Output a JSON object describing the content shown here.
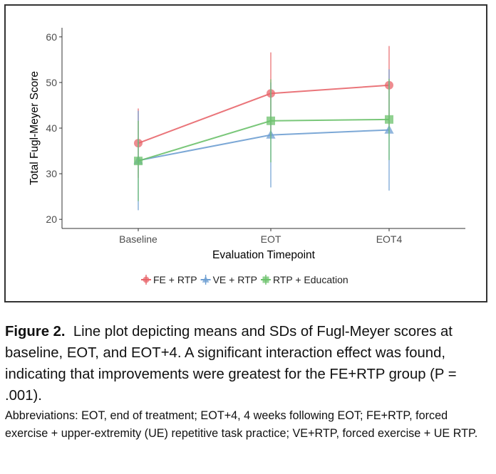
{
  "chart_data": {
    "type": "line",
    "xlabel": "Evaluation Timepoint",
    "ylabel": "Total Fugl-Meyer Score",
    "categories": [
      "Baseline",
      "EOT",
      "EOT4"
    ],
    "ylim": [
      18,
      62
    ],
    "yticks": [
      20,
      30,
      40,
      50,
      60
    ],
    "grid": false,
    "legend_position": "bottom",
    "series": [
      {
        "name": "FE + RTP",
        "color": "#e8666b",
        "marker": "circle",
        "values": [
          36.7,
          47.6,
          49.4
        ],
        "sd_low": [
          29.1,
          38.6,
          40.6
        ],
        "sd_high": [
          44.3,
          56.6,
          58.0
        ]
      },
      {
        "name": "VE + RTP",
        "color": "#6e9fd2",
        "marker": "triangle",
        "values": [
          32.9,
          38.5,
          39.6
        ],
        "sd_low": [
          22.0,
          27.0,
          26.3
        ],
        "sd_high": [
          43.8,
          50.0,
          52.9
        ]
      },
      {
        "name": "RTP + Education",
        "color": "#6cc16c",
        "marker": "square",
        "values": [
          32.8,
          41.6,
          41.9
        ],
        "sd_low": [
          24.0,
          32.5,
          33.0
        ],
        "sd_high": [
          41.6,
          50.7,
          50.8
        ]
      }
    ]
  },
  "caption": {
    "label": "Figure 2.",
    "text": "Line plot depicting means and SDs of Fugl-Meyer scores at baseline, EOT, and EOT+4. A significant interaction effect was found, indicating that improvements were greatest for the FE+RTP group (P = .001).",
    "abbreviations": "Abbreviations: EOT, end of treatment; EOT+4, 4 weeks following EOT; FE+RTP, forced exercise + upper-extremity (UE) repetitive task practice; VE+RTP, forced exercise + UE RTP."
  }
}
